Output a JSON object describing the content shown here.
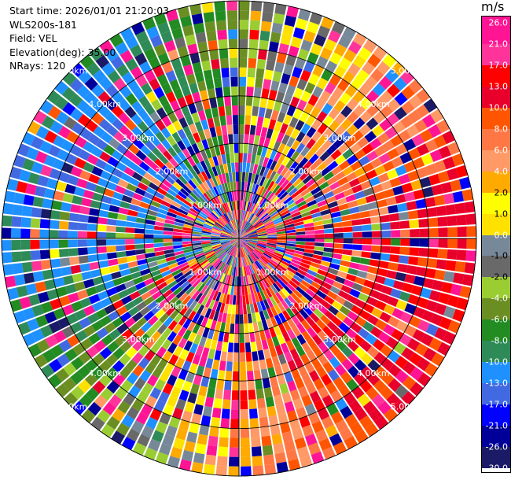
{
  "header": {
    "start_time": "Start time: 2026/01/01 21:20:03",
    "instrument": "WLS200s-181",
    "field": "Field: VEL",
    "elevation": "Elevation(deg): 35.00",
    "nrays": "NRays: 120"
  },
  "chart_data": {
    "type": "ppi",
    "field": "VEL",
    "units": "m/s",
    "nrays": 120,
    "elevation_deg": 35.0,
    "range_max_km": 5.0,
    "range_rings_km": [
      1.0,
      2.0,
      3.0,
      4.0,
      5.0
    ],
    "range_ring_labels": [
      "1.00km",
      "2.00km",
      "3.00km",
      "4.00km",
      "5.00km"
    ],
    "colorbar": {
      "title": "m/s",
      "ticks": [
        "26.0",
        "21.0",
        "17.0",
        "13.0",
        "10.0",
        "8.0",
        "6.0",
        "4.0",
        "2.0",
        "1.0",
        "0.0",
        "-1.0",
        "-2.0",
        "-4.0",
        "-6.0",
        "-8.0",
        "-10.0",
        "-13.0",
        "-17.0",
        "-21.0",
        "-26.0",
        "-30.0"
      ],
      "colors": [
        "#ff1493",
        "#ff3399",
        "#ff0000",
        "#e8002a",
        "#ff5500",
        "#ff7744",
        "#ff9966",
        "#ffaa00",
        "#ffff00",
        "#ffe100",
        "#778899",
        "#696969",
        "#9acd32",
        "#6b8e23",
        "#228b22",
        "#2e8b57",
        "#1e90ff",
        "#4169e1",
        "#0000ff",
        "#000099",
        "#1a1a66"
      ]
    },
    "velocity_pattern": {
      "positive_sector_center_deg": 110,
      "negative_sector_center_deg": 290,
      "amplitude_ms": 12,
      "near_range_noise": "high"
    }
  }
}
